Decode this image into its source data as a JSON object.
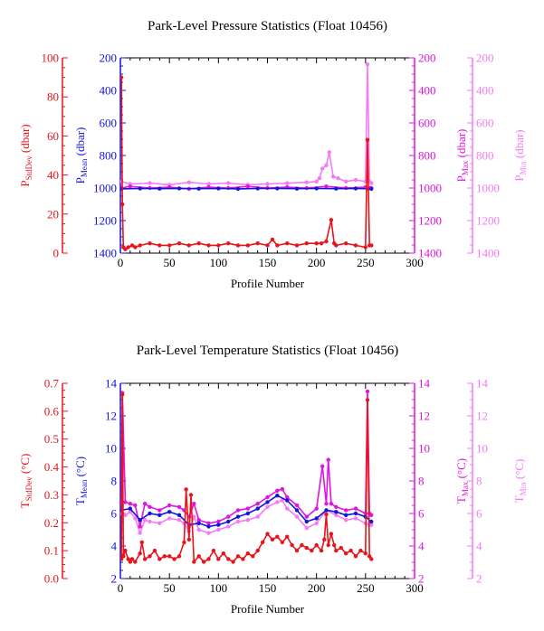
{
  "chart_data": [
    {
      "type": "line",
      "title": "Park-Level Pressure Statistics (Float 10456)",
      "xlabel": "Profile Number",
      "xlim": [
        0,
        300
      ],
      "x_ticks": [
        "0",
        "50",
        "100",
        "150",
        "200",
        "250",
        "300"
      ],
      "grid": false,
      "legend": "none",
      "axes": [
        {
          "side": "left-outer",
          "label_main": "P",
          "label_sub": "StdDev",
          "label_unit": " (dbar)",
          "color": "#e8141c",
          "lim": [
            0,
            100
          ],
          "inverted": false,
          "ticks": [
            "0",
            "20",
            "40",
            "60",
            "80",
            "100"
          ]
        },
        {
          "side": "left-inner",
          "label_main": "P",
          "label_sub": "Mean",
          "label_unit": " (dbar)",
          "color": "#1414dc",
          "lim": [
            200,
            1400
          ],
          "inverted": true,
          "ticks": [
            "200",
            "400",
            "600",
            "800",
            "1000",
            "1200",
            "1400"
          ]
        },
        {
          "side": "right-inner",
          "label_main": "P",
          "label_sub": "Max",
          "label_unit": " (dbar)",
          "color": "#e014e0",
          "lim": [
            200,
            1400
          ],
          "inverted": true,
          "ticks": [
            "200",
            "400",
            "600",
            "800",
            "1000",
            "1200",
            "1400"
          ]
        },
        {
          "side": "right-outer",
          "label_main": "P",
          "label_sub": "Min",
          "label_unit": " (dbar)",
          "color": "#f57af5",
          "lim": [
            200,
            1400
          ],
          "inverted": true,
          "ticks": [
            "200",
            "400",
            "600",
            "800",
            "1000",
            "1200",
            "1400"
          ]
        }
      ],
      "series": [
        {
          "name": "PMin",
          "axis": 3,
          "color": "#f57af5",
          "x": [
            1,
            10,
            30,
            50,
            70,
            90,
            110,
            130,
            150,
            170,
            190,
            200,
            203,
            206,
            210,
            213,
            217,
            222,
            230,
            240,
            250,
            252,
            254,
            256
          ],
          "y": [
            960,
            975,
            970,
            980,
            965,
            975,
            970,
            980,
            975,
            970,
            965,
            960,
            940,
            880,
            860,
            780,
            930,
            940,
            960,
            950,
            960,
            240,
            960,
            970
          ]
        },
        {
          "name": "PMax",
          "axis": 2,
          "color": "#e014e0",
          "x": [
            1,
            10,
            30,
            50,
            70,
            90,
            110,
            130,
            150,
            170,
            190,
            210,
            230,
            250,
            252,
            254,
            256
          ],
          "y": [
            1000,
            990,
            1000,
            995,
            1005,
            995,
            1000,
            990,
            1000,
            995,
            1000,
            990,
            1000,
            995,
            1005,
            1000,
            1000
          ]
        },
        {
          "name": "PMean",
          "axis": 1,
          "color": "#1414dc",
          "x": [
            1,
            20,
            40,
            60,
            80,
            100,
            120,
            140,
            160,
            180,
            200,
            220,
            240,
            256
          ],
          "y": [
            1005,
            1003,
            1004,
            1002,
            1004,
            1003,
            1005,
            1003,
            1002,
            1004,
            1003,
            1004,
            1003,
            1005
          ]
        },
        {
          "name": "PStdDev",
          "axis": 0,
          "color": "#e8141c",
          "x": [
            1,
            2,
            3,
            5,
            8,
            12,
            15,
            20,
            30,
            40,
            50,
            60,
            70,
            80,
            90,
            100,
            110,
            120,
            130,
            140,
            150,
            155,
            160,
            170,
            180,
            190,
            200,
            205,
            210,
            215,
            218,
            220,
            230,
            240,
            250,
            252,
            254,
            256
          ],
          "y": [
            90,
            25,
            3,
            2,
            3,
            4,
            3,
            4,
            5,
            4,
            4,
            5,
            4,
            5,
            4,
            4,
            5,
            4,
            4,
            5,
            4,
            7,
            4,
            5,
            4,
            5,
            5,
            5,
            6,
            17,
            5,
            4,
            5,
            4,
            3,
            58,
            4,
            4
          ]
        }
      ]
    },
    {
      "type": "line",
      "title": "Park-Level Temperature Statistics (Float 10456)",
      "xlabel": "Profile Number",
      "xlim": [
        0,
        300
      ],
      "x_ticks": [
        "0",
        "50",
        "100",
        "150",
        "200",
        "250",
        "300"
      ],
      "grid": false,
      "legend": "none",
      "axes": [
        {
          "side": "left-outer",
          "label_main": "T",
          "label_sub": "StdDev",
          "label_unit": " (°C)",
          "color": "#e8141c",
          "lim": [
            0,
            0.7
          ],
          "inverted": false,
          "ticks": [
            "0.0",
            "0.1",
            "0.2",
            "0.3",
            "0.4",
            "0.5",
            "0.6",
            "0.7"
          ]
        },
        {
          "side": "left-inner",
          "label_main": "T",
          "label_sub": "Mean",
          "label_unit": " (°C)",
          "color": "#1414dc",
          "lim": [
            2,
            14
          ],
          "inverted": false,
          "ticks": [
            "2",
            "4",
            "6",
            "8",
            "10",
            "12",
            "14"
          ]
        },
        {
          "side": "right-inner",
          "label_main": "T",
          "label_sub": "Max",
          "label_unit": " (°C)",
          "color": "#e014e0",
          "lim": [
            2,
            14
          ],
          "inverted": false,
          "ticks": [
            "2",
            "4",
            "6",
            "8",
            "10",
            "12",
            "14"
          ]
        },
        {
          "side": "right-outer",
          "label_main": "T",
          "label_sub": "Min",
          "label_unit": " (°C)",
          "color": "#f57af5",
          "lim": [
            2,
            14
          ],
          "inverted": false,
          "ticks": [
            "2",
            "4",
            "6",
            "8",
            "10",
            "12",
            "14"
          ]
        }
      ],
      "series": [
        {
          "name": "TMin",
          "axis": 3,
          "color": "#f57af5",
          "x": [
            1,
            5,
            10,
            15,
            20,
            25,
            30,
            40,
            50,
            60,
            65,
            70,
            75,
            80,
            90,
            100,
            110,
            120,
            130,
            140,
            150,
            160,
            165,
            170,
            180,
            190,
            200,
            210,
            220,
            230,
            240,
            250,
            254,
            256
          ],
          "y": [
            6.0,
            5.9,
            6.1,
            5.7,
            4.8,
            5.6,
            5.5,
            5.4,
            5.7,
            5.6,
            5.4,
            4.9,
            5.8,
            5.0,
            4.8,
            5.0,
            5.2,
            5.5,
            5.6,
            5.8,
            6.4,
            6.7,
            6.8,
            6.3,
            5.8,
            5.1,
            5.4,
            6.2,
            5.9,
            5.6,
            5.7,
            5.4,
            5.3,
            5.3
          ]
        },
        {
          "name": "TMax",
          "axis": 2,
          "color": "#e014e0",
          "x": [
            1,
            2,
            5,
            10,
            15,
            20,
            25,
            30,
            40,
            50,
            60,
            65,
            70,
            75,
            80,
            90,
            100,
            110,
            120,
            130,
            140,
            150,
            160,
            165,
            170,
            180,
            190,
            200,
            206,
            210,
            212,
            215,
            220,
            230,
            240,
            250,
            252,
            254,
            256
          ],
          "y": [
            6.6,
            13.4,
            6.7,
            6.6,
            6.5,
            5.2,
            6.6,
            6.4,
            6.2,
            6.5,
            6.4,
            6.2,
            5.8,
            6.6,
            5.6,
            5.4,
            5.5,
            5.8,
            6.2,
            6.3,
            6.6,
            7.0,
            7.4,
            7.5,
            7.0,
            6.5,
            5.8,
            6.3,
            8.9,
            6.6,
            9.3,
            6.6,
            6.4,
            6.2,
            6.3,
            6.0,
            13.5,
            6.0,
            5.9
          ]
        },
        {
          "name": "TMean",
          "axis": 1,
          "color": "#1414dc",
          "x": [
            1,
            10,
            20,
            30,
            40,
            50,
            60,
            70,
            80,
            90,
            100,
            110,
            120,
            130,
            140,
            150,
            160,
            170,
            180,
            190,
            200,
            210,
            220,
            230,
            240,
            250,
            256
          ],
          "y": [
            6.2,
            6.3,
            5.6,
            6.0,
            5.9,
            6.1,
            5.9,
            5.3,
            5.4,
            5.2,
            5.3,
            5.5,
            5.8,
            6.0,
            6.3,
            6.7,
            7.1,
            6.8,
            6.2,
            5.5,
            5.7,
            6.2,
            6.1,
            5.9,
            6.0,
            5.8,
            5.5
          ]
        },
        {
          "name": "TStdDev",
          "axis": 0,
          "color": "#e8141c",
          "x": [
            1,
            2,
            3,
            5,
            8,
            10,
            12,
            15,
            20,
            22,
            25,
            30,
            35,
            40,
            45,
            50,
            55,
            60,
            65,
            67,
            70,
            72,
            75,
            80,
            85,
            90,
            95,
            100,
            105,
            110,
            115,
            120,
            125,
            130,
            135,
            140,
            145,
            150,
            155,
            160,
            165,
            170,
            175,
            180,
            185,
            190,
            195,
            200,
            205,
            208,
            210,
            212,
            215,
            218,
            220,
            225,
            230,
            235,
            240,
            245,
            250,
            252,
            254,
            256
          ],
          "y": [
            0.07,
            0.66,
            0.08,
            0.1,
            0.07,
            0.06,
            0.07,
            0.06,
            0.09,
            0.13,
            0.07,
            0.08,
            0.1,
            0.07,
            0.08,
            0.08,
            0.07,
            0.08,
            0.13,
            0.32,
            0.14,
            0.3,
            0.06,
            0.08,
            0.06,
            0.07,
            0.1,
            0.07,
            0.09,
            0.07,
            0.06,
            0.08,
            0.07,
            0.09,
            0.08,
            0.1,
            0.13,
            0.16,
            0.14,
            0.15,
            0.13,
            0.15,
            0.12,
            0.1,
            0.12,
            0.11,
            0.1,
            0.12,
            0.1,
            0.14,
            0.23,
            0.12,
            0.16,
            0.12,
            0.1,
            0.11,
            0.09,
            0.1,
            0.08,
            0.1,
            0.09,
            0.64,
            0.08,
            0.07
          ]
        }
      ]
    }
  ]
}
